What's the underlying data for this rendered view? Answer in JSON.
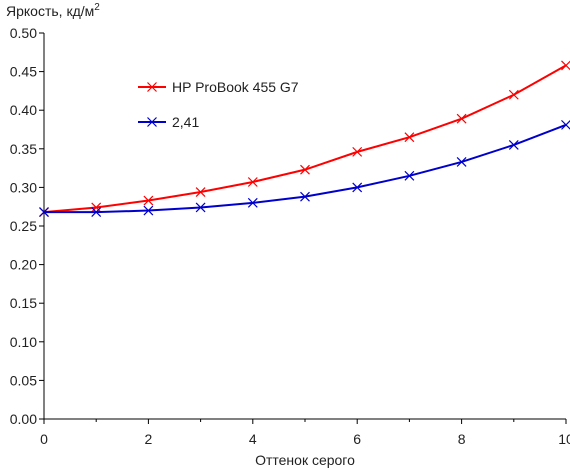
{
  "chart_data": {
    "type": "line",
    "ylabel": "Яркость, кд/м",
    "ylabel_sup": "2",
    "xlabel": "Оттенок серого",
    "xlim": [
      0,
      10
    ],
    "ylim": [
      0,
      0.5
    ],
    "x_ticks": [
      0,
      2,
      4,
      6,
      8,
      10
    ],
    "x_tick_labels": [
      "0",
      "2",
      "4",
      "6",
      "8",
      "10"
    ],
    "y_ticks": [
      0,
      0.05,
      0.1,
      0.15,
      0.2,
      0.25,
      0.3,
      0.35,
      0.4,
      0.45,
      0.5
    ],
    "y_tick_labels": [
      "0.00",
      "0.05",
      "0.10",
      "0.15",
      "0.20",
      "0.25",
      "0.30",
      "0.35",
      "0.40",
      "0.45",
      "0.50"
    ],
    "grid": false,
    "legend_position": "top-left inside plot",
    "x": [
      0,
      1,
      2,
      3,
      4,
      5,
      6,
      7,
      8,
      9,
      10
    ],
    "series": [
      {
        "name": "HP ProBook 455 G7",
        "color": "#ff0000",
        "marker": "x",
        "values": [
          0.268,
          0.274,
          0.283,
          0.294,
          0.307,
          0.323,
          0.346,
          0.365,
          0.389,
          0.42,
          0.458
        ]
      },
      {
        "name": "2,41",
        "color": "#0000cc",
        "marker": "x",
        "values": [
          0.268,
          0.268,
          0.27,
          0.274,
          0.28,
          0.288,
          0.3,
          0.315,
          0.333,
          0.355,
          0.381
        ]
      }
    ]
  }
}
